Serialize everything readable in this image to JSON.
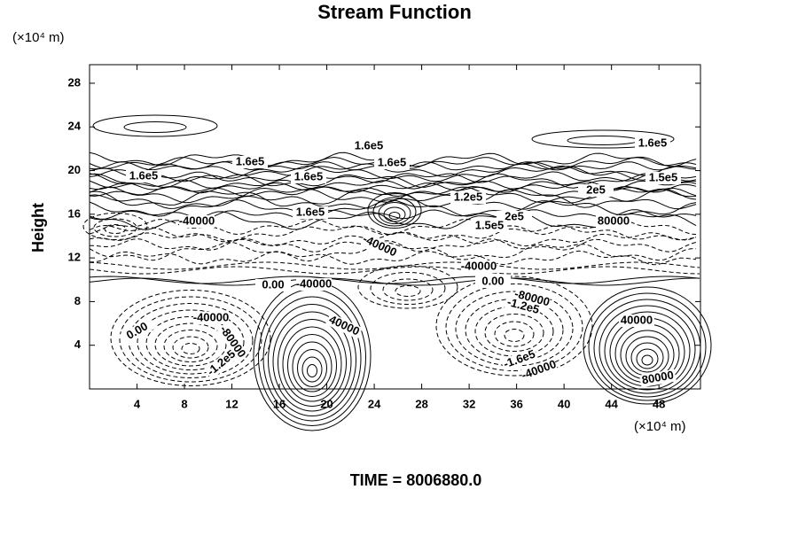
{
  "chart_data": {
    "type": "contour",
    "title": "Stream Function",
    "ylabel": "Height",
    "xunit": "(×10⁴ m)",
    "yunit": "(×10⁴ m)",
    "xlim": [
      0,
      51.5
    ],
    "ylim": [
      0,
      29.7
    ],
    "xticks": [
      4,
      8,
      12,
      16,
      20,
      24,
      28,
      32,
      36,
      40,
      44,
      48
    ],
    "yticks": [
      4,
      8,
      12,
      16,
      20,
      24,
      28
    ],
    "contour_labels": [
      "1.6e5",
      "1.6e5",
      "1.6e5",
      "1.6e5",
      "1.6e5",
      "1.6e5",
      "1.5e5",
      "1.2e5",
      "2e5",
      "1.6e5",
      "2e5",
      "1.5e5",
      "80000",
      "-40000",
      "-40000",
      "-40000",
      "0.00",
      "0.00",
      "-40000",
      "-80000",
      "-1.2e5",
      "-40000",
      "40000",
      "0.00",
      "-80000",
      "-1.2e5",
      "40000",
      "-1.6e5",
      "-40000",
      "80000"
    ],
    "footer": "TIME = 8006880.0"
  }
}
